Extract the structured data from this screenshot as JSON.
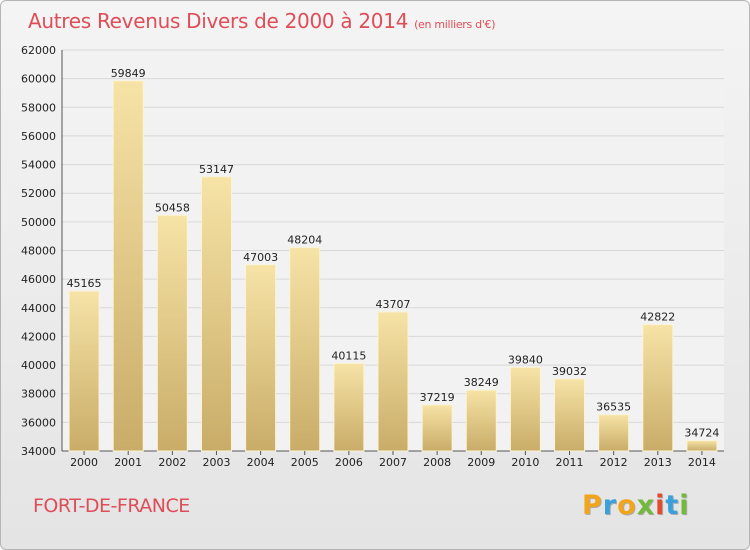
{
  "title": "Autres Revenus Divers de 2000 à 2014",
  "subtitle": "(en milliers d'€)",
  "city": "FORT-DE-FRANCE",
  "logo_text": "Proxiti",
  "logo_colors": [
    "#f2a41c",
    "#3aa0dc",
    "#f2a41c",
    "#72b93c",
    "#e44a2f",
    "#3aa0dc",
    "#72b93c"
  ],
  "colors": {
    "title": "#df4d58",
    "bar_top": "#f6e3a6",
    "bar_bottom": "#c9ac68",
    "grid": "#d8d8d8"
  },
  "chart_data": {
    "type": "bar",
    "categories": [
      "2000",
      "2001",
      "2002",
      "2003",
      "2004",
      "2005",
      "2006",
      "2007",
      "2008",
      "2009",
      "2010",
      "2011",
      "2012",
      "2013",
      "2014"
    ],
    "values": [
      45165,
      59849,
      50458,
      53147,
      47003,
      48204,
      40115,
      43707,
      37219,
      38249,
      39840,
      39032,
      36535,
      42822,
      34724
    ],
    "ylim": [
      34000,
      62000
    ],
    "yticks": [
      "34000",
      "36000",
      "38000",
      "40000",
      "42000",
      "44000",
      "46000",
      "48000",
      "50000",
      "52000",
      "54000",
      "56000",
      "58000",
      "60000",
      "62000"
    ],
    "grid": true
  }
}
